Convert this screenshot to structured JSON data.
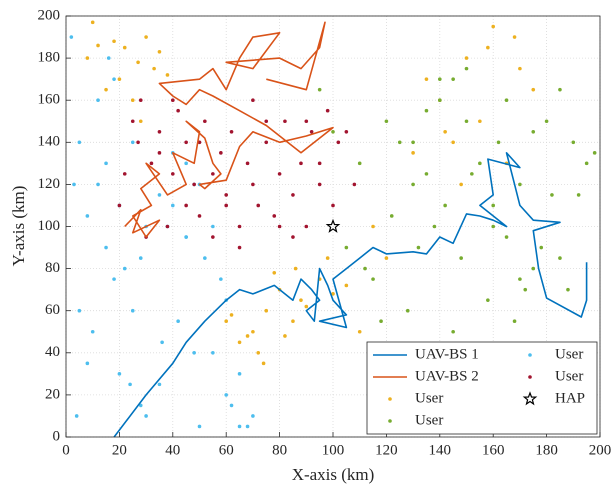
{
  "chart_data": {
    "type": "scatter-line",
    "xlabel": "X-axis (km)",
    "ylabel": "Y-axis (km)",
    "xlim": [
      0,
      200
    ],
    "ylim": [
      0,
      200
    ],
    "xticks": [
      0,
      20,
      40,
      60,
      80,
      100,
      120,
      140,
      160,
      180,
      200
    ],
    "yticks": [
      0,
      20,
      40,
      60,
      80,
      100,
      120,
      140,
      160,
      180,
      200
    ],
    "grid": true,
    "legend": "lower right",
    "series": [
      {
        "name": "UAV-BS 1",
        "kind": "line",
        "color": "#0072BD",
        "x": [
          18,
          30,
          40,
          45,
          52,
          60,
          65,
          70,
          78,
          85,
          88,
          92,
          95,
          90,
          93,
          95,
          98,
          100,
          105,
          95,
          105,
          100,
          105,
          110,
          115,
          120,
          130,
          135,
          140,
          145,
          150,
          155,
          160,
          165,
          155,
          160,
          158,
          170,
          165,
          168,
          170,
          175,
          185,
          175,
          177,
          180,
          193,
          195,
          195
        ],
        "values": [
          0,
          20,
          35,
          45,
          55,
          65,
          70,
          68,
          72,
          65,
          75,
          70,
          65,
          60,
          55,
          80,
          72,
          65,
          58,
          55,
          52,
          75,
          80,
          85,
          90,
          87,
          88,
          87,
          95,
          92,
          106,
          105,
          103,
          100,
          110,
          115,
          132,
          128,
          135,
          120,
          110,
          103,
          102,
          98,
          80,
          66,
          57,
          65,
          83
        ]
      },
      {
        "name": "UAV-BS 2",
        "kind": "line",
        "color": "#D95319",
        "x": [
          22,
          28,
          25,
          35,
          30,
          25,
          32,
          28,
          35,
          30,
          38,
          45,
          40,
          48,
          50,
          45,
          52,
          55,
          58,
          52,
          50,
          60,
          65,
          70,
          80,
          90,
          100,
          88,
          75,
          65,
          55,
          50,
          45,
          40,
          35,
          50,
          55,
          60,
          65,
          70,
          80,
          70,
          60,
          80,
          88,
          95,
          97,
          90,
          75
        ],
        "values": [
          100,
          108,
          97,
          103,
          95,
          105,
          110,
          118,
          125,
          130,
          115,
          120,
          135,
          130,
          145,
          150,
          142,
          130,
          125,
          118,
          120,
          122,
          138,
          145,
          140,
          143,
          147,
          135,
          148,
          155,
          162,
          165,
          158,
          162,
          168,
          170,
          175,
          165,
          180,
          190,
          192,
          175,
          178,
          180,
          175,
          185,
          197,
          165,
          170
        ]
      },
      {
        "name": "User",
        "kind": "dot",
        "color": "#EDB120",
        "x": [
          10,
          18,
          22,
          27,
          30,
          33,
          20,
          25,
          35,
          15,
          8,
          28,
          38,
          12,
          65,
          70,
          75,
          80,
          85,
          72,
          78,
          88,
          95,
          60,
          68,
          82,
          90,
          100,
          105,
          62,
          74,
          86,
          98,
          110,
          140,
          150,
          160,
          170,
          145,
          155,
          165,
          135,
          175,
          148,
          158,
          142,
          168,
          130,
          115,
          120
        ],
        "values": [
          197,
          188,
          185,
          178,
          190,
          175,
          170,
          160,
          183,
          165,
          180,
          150,
          172,
          186,
          45,
          50,
          60,
          70,
          55,
          40,
          78,
          65,
          75,
          55,
          48,
          48,
          62,
          68,
          72,
          58,
          35,
          80,
          85,
          50,
          160,
          180,
          195,
          175,
          140,
          150,
          130,
          170,
          165,
          120,
          185,
          145,
          190,
          135,
          100,
          85
        ]
      },
      {
        "name": "User",
        "kind": "dot",
        "color": "#77AC30",
        "x": [
          95,
          100,
          110,
          120,
          125,
          130,
          135,
          140,
          145,
          150,
          155,
          160,
          165,
          170,
          175,
          180,
          185,
          190,
          195,
          198,
          105,
          115,
          128,
          138,
          148,
          158,
          168,
          178,
          188,
          142,
          152,
          162,
          172,
          182,
          132,
          122,
          112,
          118,
          145,
          155,
          165,
          175,
          160,
          150,
          140,
          130,
          192,
          185,
          170,
          135
        ],
        "values": [
          165,
          145,
          130,
          150,
          140,
          120,
          155,
          160,
          170,
          175,
          130,
          110,
          95,
          120,
          80,
          150,
          165,
          140,
          130,
          135,
          90,
          75,
          60,
          100,
          85,
          65,
          55,
          90,
          70,
          110,
          125,
          140,
          70,
          115,
          90,
          105,
          80,
          55,
          50,
          40,
          160,
          145,
          100,
          150,
          170,
          140,
          115,
          85,
          75,
          125
        ]
      },
      {
        "name": "User",
        "kind": "dot",
        "color": "#4DBEEE",
        "x": [
          2,
          5,
          8,
          12,
          15,
          18,
          22,
          25,
          30,
          35,
          40,
          45,
          50,
          55,
          60,
          65,
          3,
          10,
          20,
          28,
          38,
          48,
          58,
          68,
          5,
          15,
          25,
          35,
          45,
          55,
          8,
          18,
          30,
          42,
          52,
          62,
          70,
          12,
          24,
          36,
          48,
          60,
          4,
          16,
          28,
          40,
          50,
          65,
          20,
          45
        ],
        "values": [
          190,
          140,
          105,
          120,
          90,
          170,
          80,
          60,
          10,
          25,
          110,
          130,
          120,
          100,
          20,
          5,
          120,
          50,
          30,
          15,
          100,
          40,
          75,
          5,
          60,
          130,
          140,
          115,
          95,
          40,
          35,
          75,
          100,
          55,
          85,
          15,
          10,
          160,
          25,
          45,
          120,
          65,
          10,
          180,
          85,
          135,
          5,
          30,
          110,
          95
        ]
      },
      {
        "name": "User",
        "kind": "dot",
        "color": "#A2142F",
        "x": [
          20,
          25,
          28,
          32,
          35,
          38,
          40,
          42,
          45,
          48,
          50,
          52,
          55,
          58,
          60,
          62,
          65,
          68,
          70,
          72,
          75,
          78,
          80,
          82,
          85,
          88,
          90,
          92,
          95,
          98,
          100,
          102,
          30,
          45,
          55,
          65,
          75,
          85,
          95,
          40,
          50,
          60,
          70,
          80,
          90,
          35,
          22,
          27,
          105,
          108
        ],
        "values": [
          110,
          150,
          160,
          130,
          145,
          100,
          125,
          155,
          140,
          120,
          105,
          150,
          95,
          135,
          115,
          145,
          100,
          130,
          160,
          110,
          140,
          105,
          125,
          150,
          115,
          130,
          100,
          145,
          120,
          155,
          110,
          140,
          95,
          110,
          125,
          90,
          150,
          95,
          130,
          160,
          140,
          110,
          120,
          100,
          150,
          135,
          125,
          140,
          145,
          120
        ]
      },
      {
        "name": "HAP",
        "kind": "star",
        "color": "#000000",
        "x": [
          100
        ],
        "values": [
          100
        ]
      }
    ]
  }
}
